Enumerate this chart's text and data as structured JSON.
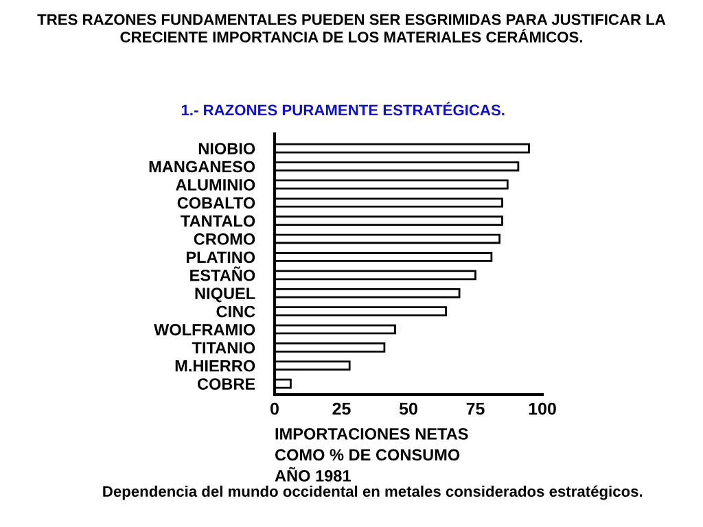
{
  "chart_data": {
    "type": "bar",
    "orientation": "horizontal",
    "title": "TRES RAZONES FUNDAMENTALES PUEDEN SER ESGRIMIDAS PARA JUSTIFICAR LA CRECIENTE IMPORTANCIA DE LOS MATERIALES CERÁMICOS.",
    "subtitle": "1.- RAZONES PURAMENTE ESTRATÉGICAS.",
    "xlabel": "IMPORTACIONES NETAS\nCOMO % DE CONSUMO\nAÑO 1981",
    "categories": [
      "NIOBIO",
      "MANGANESO",
      "ALUMINIO",
      "COBALTO",
      "TANTALO",
      "CROMO",
      "PLATINO",
      "ESTAÑO",
      "NIQUEL",
      "CINC",
      "WOLFRAMIO",
      "TITANIO",
      "M.HIERRO",
      "COBRE"
    ],
    "values": [
      95,
      91,
      87,
      85,
      85,
      84,
      81,
      75,
      69,
      64,
      45,
      41,
      28,
      6
    ],
    "color": "#ffffff",
    "xlim": [
      0,
      100
    ],
    "xticks": [
      0,
      25,
      50,
      75,
      100
    ],
    "grid": false,
    "legend": false,
    "annotations": [
      "Dependencia del mundo occidental en metales considerados estratégicos."
    ]
  }
}
